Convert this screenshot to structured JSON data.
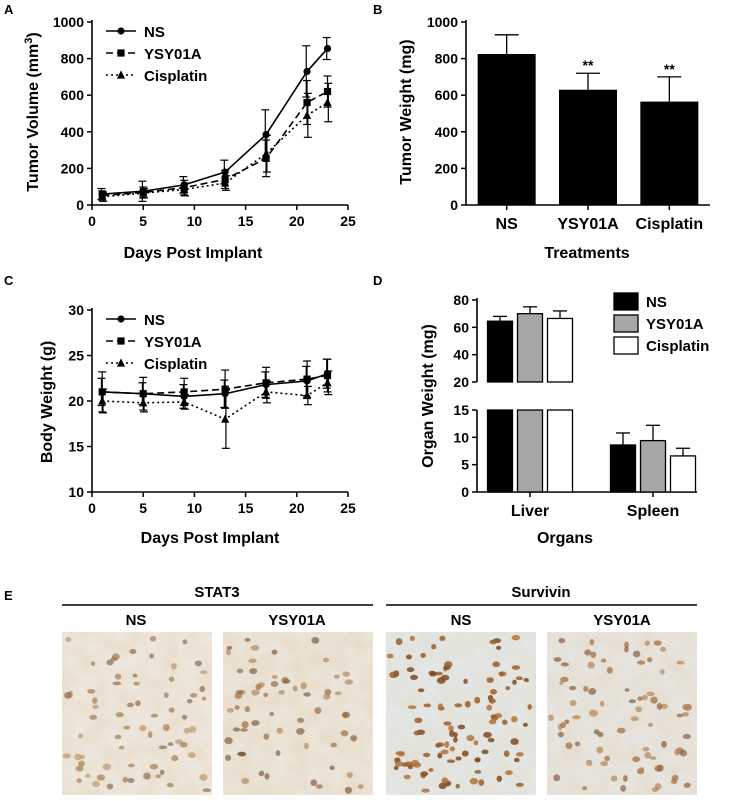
{
  "chart_data": [
    {
      "panel": "A",
      "type": "line",
      "xlabel": "Days Post Implant",
      "ylabel": "Tumor Volume (mm3)",
      "ylabel_main": "Tumor Volume (mm",
      "ylabel_sup": "3",
      "ylabel_close": ")",
      "xlim": [
        0,
        25
      ],
      "ylim": [
        0,
        1000
      ],
      "xticks": [
        0,
        5,
        10,
        15,
        20,
        25
      ],
      "yticks": [
        0,
        200,
        400,
        600,
        800,
        1000
      ],
      "legend": "top-left",
      "x": [
        1,
        5,
        9,
        13,
        17,
        21,
        23
      ],
      "series": [
        {
          "name": "NS",
          "marker": "circle",
          "dash": "solid",
          "values": [
            60,
            75,
            110,
            180,
            385,
            730,
            855
          ],
          "errors": [
            30,
            55,
            45,
            65,
            135,
            140,
            60
          ]
        },
        {
          "name": "YSY01A",
          "marker": "square",
          "dash": "dashed",
          "values": [
            52,
            68,
            95,
            140,
            255,
            560,
            620
          ],
          "errors": [
            25,
            30,
            40,
            50,
            100,
            120,
            85
          ]
        },
        {
          "name": "Cisplatin",
          "marker": "triangle",
          "dash": "dotted",
          "values": [
            45,
            65,
            85,
            120,
            280,
            490,
            560
          ],
          "errors": [
            25,
            25,
            35,
            40,
            100,
            120,
            105
          ]
        }
      ]
    },
    {
      "panel": "B",
      "type": "bar",
      "xlabel": "Treatments",
      "ylabel": "Tumor Weight (mg)",
      "ylim": [
        0,
        1000
      ],
      "yticks": [
        0,
        200,
        400,
        600,
        800,
        1000
      ],
      "categories": [
        "NS",
        "YSY01A",
        "Cisplatin"
      ],
      "values": [
        825,
        630,
        565
      ],
      "errors": [
        105,
        90,
        135
      ],
      "annotations": [
        "",
        "**",
        "**"
      ]
    },
    {
      "panel": "C",
      "type": "line",
      "xlabel": "Days Post Implant",
      "ylabel": "Body Weight (g)",
      "xlim": [
        0,
        25
      ],
      "ylim": [
        10,
        30
      ],
      "xticks": [
        0,
        5,
        10,
        15,
        20,
        25
      ],
      "yticks": [
        10,
        15,
        20,
        25,
        30
      ],
      "legend": "top-left",
      "x": [
        1,
        5,
        9,
        13,
        17,
        21,
        23
      ],
      "series": [
        {
          "name": "NS",
          "marker": "circle",
          "dash": "solid",
          "values": [
            21.0,
            20.8,
            20.5,
            20.8,
            21.8,
            22.2,
            23.0
          ],
          "errors": [
            1.5,
            1.2,
            1.3,
            1.5,
            1.4,
            1.6,
            1.6
          ]
        },
        {
          "name": "YSY01A",
          "marker": "square",
          "dash": "dashed",
          "values": [
            21.0,
            20.8,
            21.0,
            21.3,
            22.0,
            22.4,
            22.8
          ],
          "errors": [
            2.2,
            1.8,
            1.5,
            2.1,
            1.7,
            2.0,
            1.8
          ]
        },
        {
          "name": "Cisplatin",
          "marker": "triangle",
          "dash": "dotted",
          "values": [
            20.0,
            19.8,
            19.9,
            18.0,
            21.0,
            20.6,
            22.0
          ],
          "errors": [
            1.3,
            1.0,
            0.8,
            3.2,
            1.2,
            1.0,
            1.3
          ]
        }
      ]
    },
    {
      "panel": "D",
      "type": "bar",
      "xlabel": "Organs",
      "ylabel": "Organ Weight (mg)",
      "broken_axis": true,
      "ylim_upper": [
        20,
        80
      ],
      "ylim_lower": [
        0,
        15
      ],
      "yticks_upper": [
        20,
        40,
        60,
        80
      ],
      "yticks_lower": [
        0,
        5,
        10,
        15
      ],
      "legend": "top-right",
      "categories": [
        "Liver",
        "Spleen"
      ],
      "series": [
        {
          "name": "NS",
          "color": "#000000",
          "values": [
            64.5,
            8.6
          ],
          "errors": [
            3.5,
            2.2
          ]
        },
        {
          "name": "YSY01A",
          "color": "#a6a6a6",
          "values": [
            70.0,
            9.4
          ],
          "errors": [
            5.0,
            2.8
          ]
        },
        {
          "name": "Cisplatin",
          "color": "#ffffff",
          "values": [
            66.5,
            6.6
          ],
          "errors": [
            5.5,
            1.4
          ]
        }
      ]
    }
  ],
  "panel_E": {
    "letter": "E",
    "groups": [
      {
        "title": "STAT3",
        "columns": [
          "NS",
          "YSY01A"
        ]
      },
      {
        "title": "Survivin",
        "columns": [
          "NS",
          "YSY01A"
        ]
      }
    ]
  }
}
